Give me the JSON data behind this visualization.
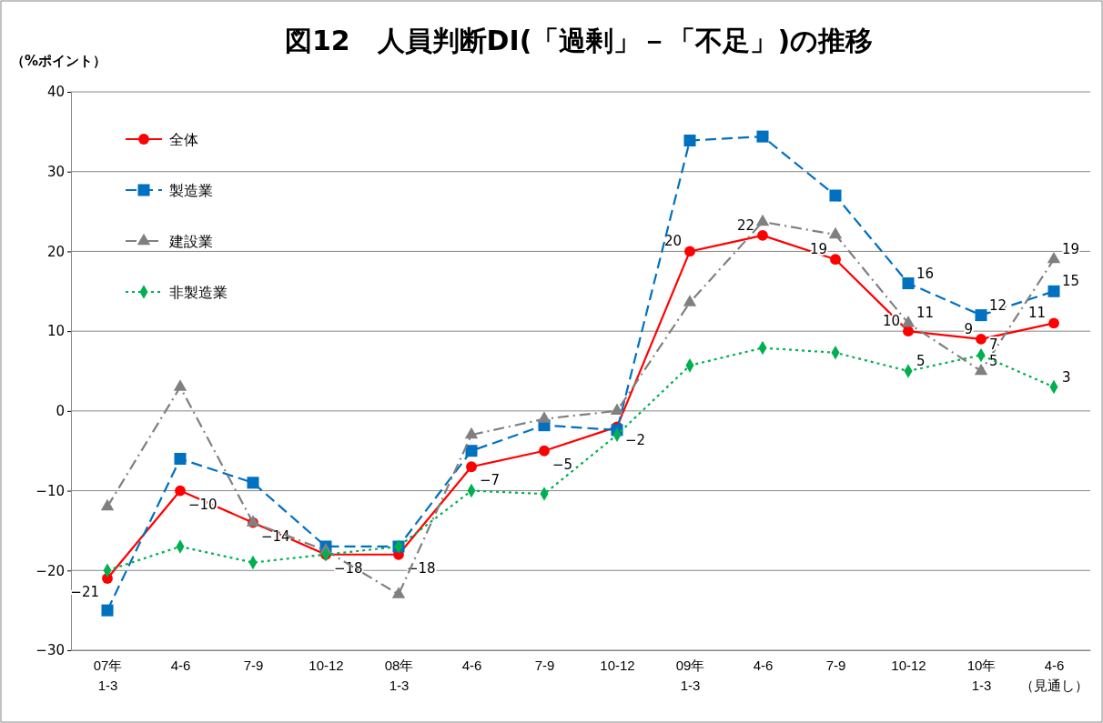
{
  "chart_data": {
    "type": "line",
    "title": "図12　人員判断DI(「過剰」－「不足」)の推移",
    "ylabel": "（%ポイント）",
    "categories": [
      "07年\n1-3",
      "4-6",
      "7-9",
      "10-12",
      "08年\n1-3",
      "4-6",
      "7-9",
      "10-12",
      "09年\n1-3",
      "4-6",
      "7-9",
      "10-12",
      "10年\n1-3",
      "4-6\n（見通し）"
    ],
    "ylim": [
      -30,
      40
    ],
    "yticks": [
      {
        "value": -30,
        "label": "−30"
      },
      {
        "value": -20,
        "label": "−20"
      },
      {
        "value": -10,
        "label": "−10"
      },
      0,
      10,
      20,
      30,
      40
    ],
    "grid": "y",
    "legend": "top left",
    "series": [
      {
        "name": "全体",
        "color": "#ff0000",
        "marker": "circle",
        "line_style": "solid",
        "values": [
          -21,
          -10,
          -14,
          -18,
          -18,
          -7,
          -5,
          -2,
          20,
          22,
          19,
          10,
          9,
          11
        ],
        "value_labels": [
          "−21",
          "−10",
          "−14",
          "−18",
          "−18",
          "−7",
          "−5",
          "−2",
          "20",
          "22",
          "19",
          "10",
          "9",
          "11"
        ]
      },
      {
        "name": "製造業",
        "color": "#0070c0",
        "marker": "square",
        "line_style": "dashed",
        "values": [
          -25,
          -6,
          -9,
          -17,
          -17,
          -5,
          -1.8,
          -2.4,
          33.9,
          34.4,
          27,
          16,
          12,
          15
        ],
        "value_labels": [
          null,
          null,
          null,
          null,
          null,
          null,
          null,
          null,
          null,
          null,
          null,
          "16",
          "12",
          "15"
        ]
      },
      {
        "name": "建設業",
        "color": "#808080",
        "marker": "triangle",
        "line_style": "dashdot",
        "values": [
          -12,
          3,
          -14,
          -17.5,
          -23,
          -3,
          -1,
          0,
          13.6,
          23.7,
          22.1,
          11,
          5,
          19
        ],
        "value_labels": [
          null,
          null,
          null,
          null,
          null,
          null,
          null,
          null,
          null,
          null,
          null,
          "11",
          "5",
          "19"
        ]
      },
      {
        "name": "非製造業",
        "color": "#00b050",
        "marker": "diamond",
        "line_style": "dotted",
        "values": [
          -20,
          -17,
          -19,
          -18,
          -17,
          -10,
          -10.4,
          -3,
          5.7,
          7.9,
          7.3,
          5,
          7,
          3
        ],
        "value_labels": [
          null,
          null,
          null,
          null,
          null,
          null,
          null,
          null,
          null,
          null,
          null,
          "5",
          "7",
          "3"
        ]
      }
    ]
  }
}
